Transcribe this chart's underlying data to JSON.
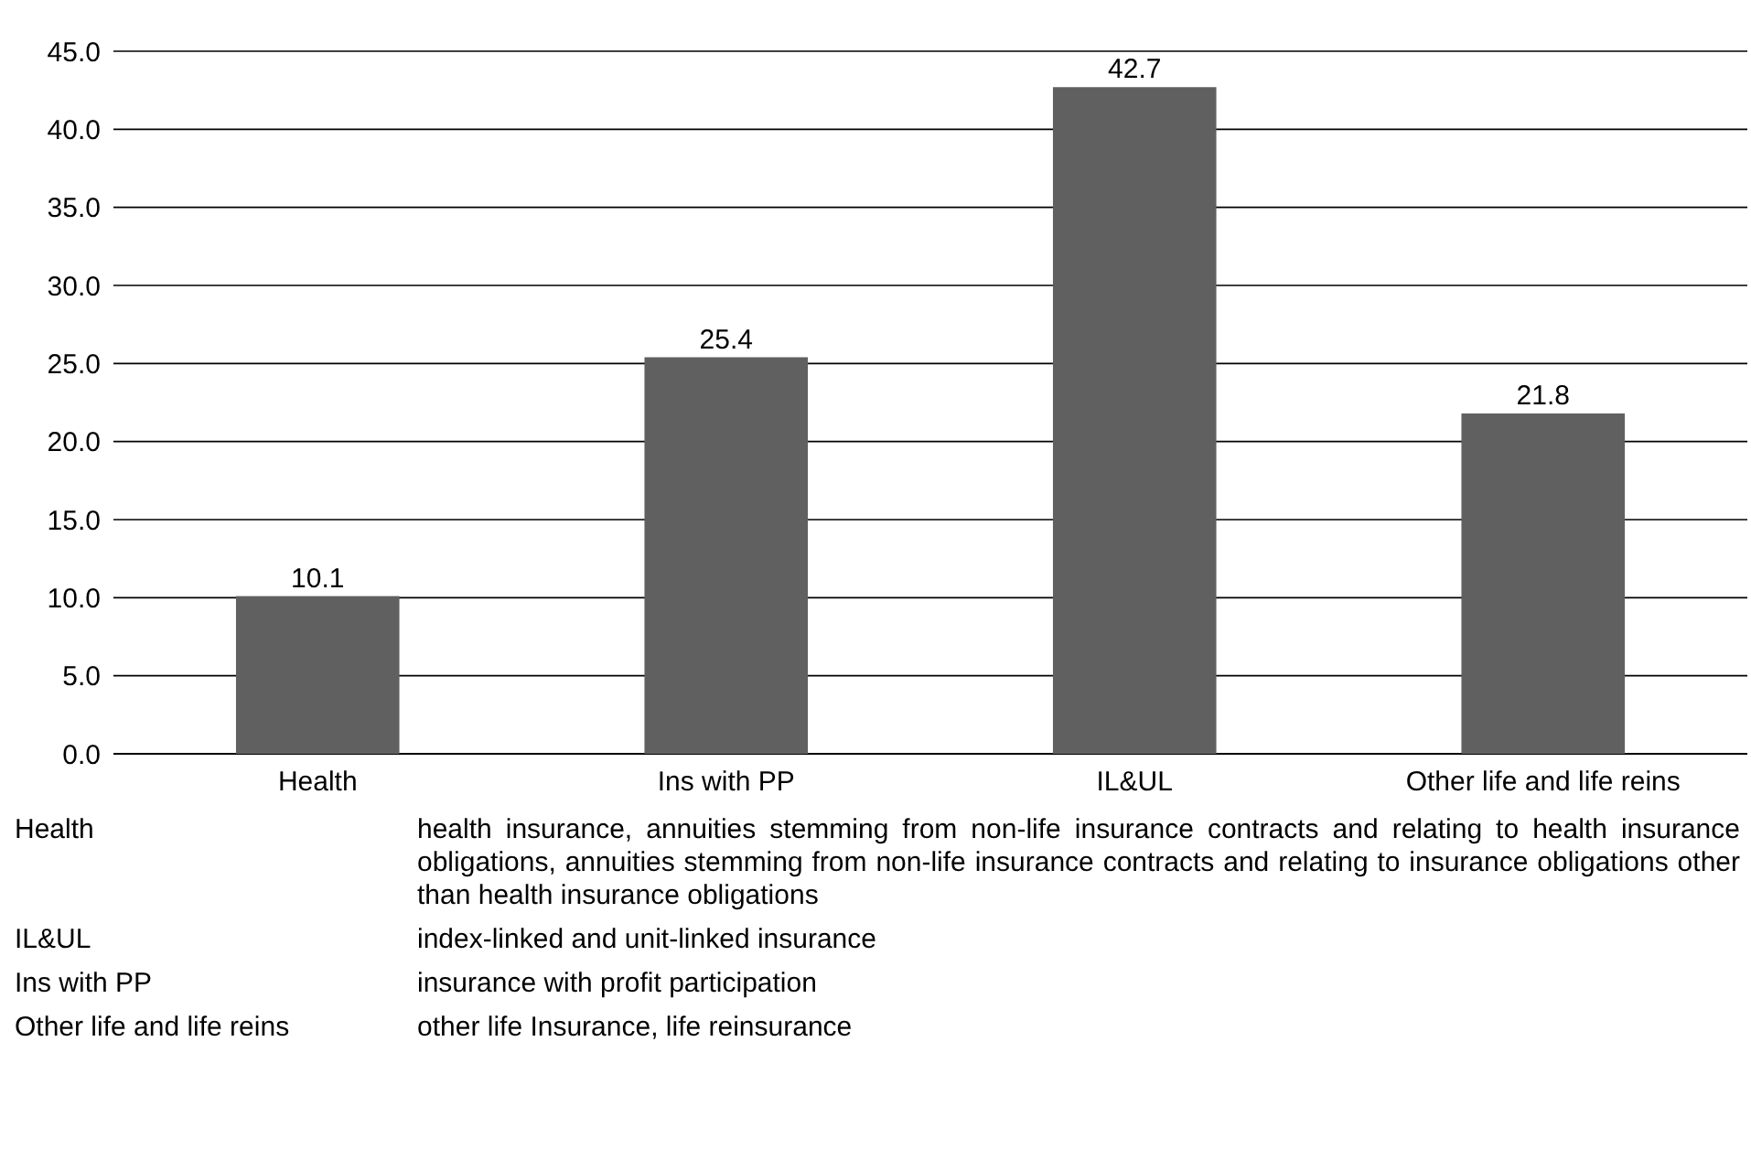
{
  "chart_data": {
    "type": "bar",
    "categories": [
      "Health",
      "Ins with PP",
      "IL&UL",
      "Other life and life reins"
    ],
    "values": [
      10.1,
      25.4,
      42.7,
      21.8
    ],
    "color": "#606060",
    "data_labels": true,
    "grid": "y",
    "ylim": [
      0,
      45
    ],
    "yticks": [
      {
        "value": 0,
        "label": "0.0"
      },
      {
        "value": 5,
        "label": "5.0"
      },
      {
        "value": 10,
        "label": "10.0"
      },
      {
        "value": 15,
        "label": "15.0"
      },
      {
        "value": 20,
        "label": "20.0"
      },
      {
        "value": 25,
        "label": "25.0"
      },
      {
        "value": 30,
        "label": "30.0"
      },
      {
        "value": 35,
        "label": "35.0"
      },
      {
        "value": 40,
        "label": "40.0"
      },
      {
        "value": 45,
        "label": "45.0"
      }
    ],
    "annotations": [
      "Health",
      "health insurance, annuities stemming from non-life insurance contracts and relating to health insurance obligations, annuities stemming from non-life insurance contracts and relating to insurance obligations other than health insurance obligations",
      "IL&UL",
      "index-linked and unit-linked insurance",
      "Ins with PP",
      "insurance with profit participation",
      "Other life and life reins",
      "other life Insurance, life reinsurance"
    ]
  }
}
